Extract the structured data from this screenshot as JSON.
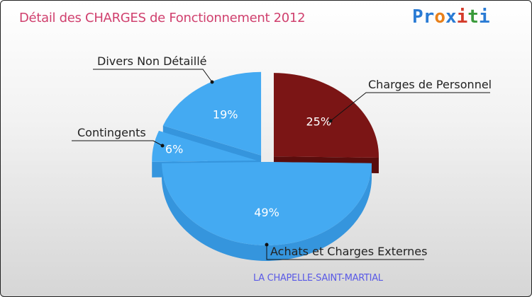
{
  "title": "Détail des CHARGES de Fonctionnement 2012",
  "logo": {
    "text": "Proxiti",
    "letters": [
      "P",
      "r",
      "o",
      "x",
      "i",
      "t",
      "i"
    ],
    "colors": [
      "#2a7bd4",
      "#2a7bd4",
      "#e8801a",
      "#2a7bd4",
      "#d43b2a",
      "#3a9a3a",
      "#2a7bd4"
    ]
  },
  "subtitle": "LA CHAPELLE-SAINT-MARTIAL",
  "chart_data": {
    "type": "pie",
    "title": "Détail des CHARGES de Fonctionnement 2012",
    "slices": [
      {
        "label": "Charges de Personnel",
        "value": 25,
        "pct_label": "25%",
        "color": "#7b1515",
        "side": "#5a0d0d",
        "exploded": true
      },
      {
        "label": "Achats et Charges Externes",
        "value": 49,
        "pct_label": "49%",
        "color": "#44aaf2",
        "side": "#3595dd",
        "exploded": false
      },
      {
        "label": "Contingents",
        "value": 6,
        "pct_label": "6%",
        "color": "#44aaf2",
        "side": "#3595dd",
        "exploded": true
      },
      {
        "label": "Divers Non Détaillé",
        "value": 19,
        "pct_label": "19%",
        "color": "#44aaf2",
        "side": "#3595dd",
        "exploded": true
      }
    ]
  }
}
